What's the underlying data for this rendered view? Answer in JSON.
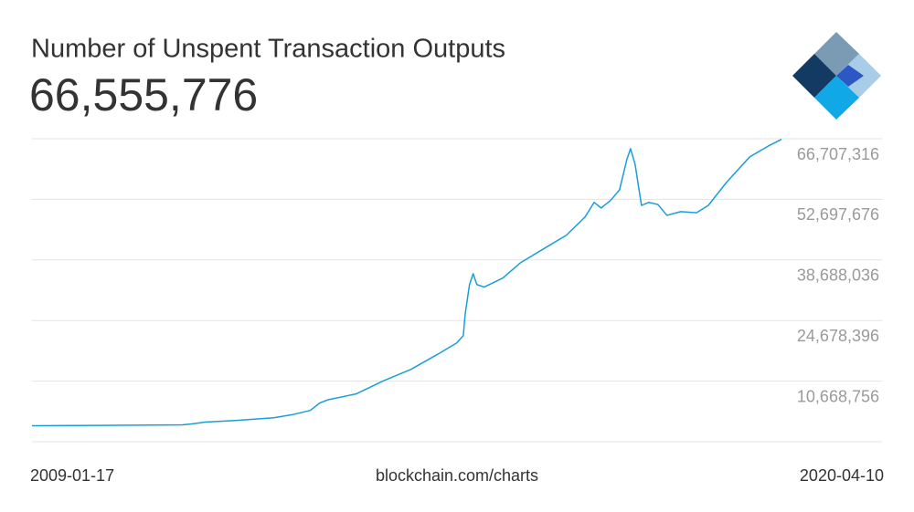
{
  "chart_data": {
    "type": "line",
    "title": "Number of Unspent Transaction Outputs",
    "subtitle": "66,555,776",
    "source": "blockchain.com/charts",
    "xlim": [
      "2009-01-17",
      "2020-04-10"
    ],
    "xticks": [
      "2009-01-17",
      "2020-04-10"
    ],
    "ylim": [
      -3340884,
      66707316
    ],
    "yticks": [
      {
        "value": 10668756,
        "label": "10,668,756"
      },
      {
        "value": 24678396,
        "label": "24,678,396"
      },
      {
        "value": 38688036,
        "label": "38,688,036"
      },
      {
        "value": 52697676,
        "label": "52,697,676"
      },
      {
        "value": 66707316,
        "label": "66,707,316"
      }
    ],
    "grid": true,
    "x": [
      "2009-01-17",
      "2011-04-20",
      "2011-06-10",
      "2011-08-22",
      "2012-02-14",
      "2012-09-01",
      "2012-12-10",
      "2013-03-20",
      "2013-05-10",
      "2013-06-28",
      "2013-11-25",
      "2014-04-22",
      "2014-09-22",
      "2015-02-20",
      "2015-05-30",
      "2015-07-05",
      "2015-07-15",
      "2015-08-08",
      "2015-08-28",
      "2015-09-17",
      "2015-10-27",
      "2016-02-06",
      "2016-05-15",
      "2016-10-12",
      "2017-01-19",
      "2017-05-01",
      "2017-06-20",
      "2017-07-28",
      "2017-09-17",
      "2017-11-06",
      "2017-12-16",
      "2018-01-05",
      "2018-01-30",
      "2018-03-06",
      "2018-04-15",
      "2018-06-04",
      "2018-07-23",
      "2018-10-07",
      "2019-01-01",
      "2019-03-07",
      "2019-06-14",
      "2019-10-19",
      "2020-01-28",
      "2020-04-10"
    ],
    "series": [
      {
        "color": "#1a9ed8",
        "values": [
          350000,
          560000,
          770000,
          1200000,
          1600000,
          2200000,
          2900000,
          3900000,
          5600000,
          6400000,
          7700000,
          10700000,
          13400000,
          17000000,
          19500000,
          21200000,
          26050000,
          33000000,
          35500000,
          33000000,
          32400000,
          34500000,
          38100000,
          41900000,
          44400000,
          48600000,
          52000000,
          50700000,
          52400000,
          54900000,
          61900000,
          64400000,
          60800000,
          51300000,
          52000000,
          51500000,
          49000000,
          49850000,
          49600000,
          51300000,
          56600000,
          62500000,
          65000000,
          66555776
        ]
      }
    ]
  }
}
